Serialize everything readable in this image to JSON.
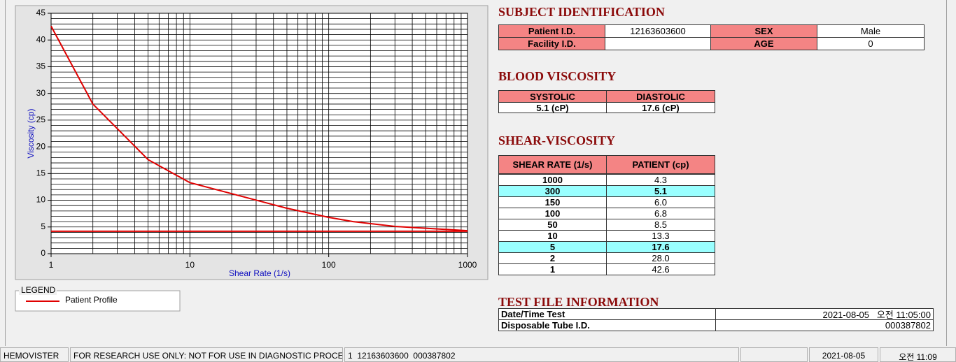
{
  "chart_data": {
    "type": "line",
    "xlabel": "Shear Rate (1/s)",
    "ylabel": "Viscosity (cp)",
    "xscale": "log",
    "xlim": [
      1,
      1000
    ],
    "ylim": [
      0,
      45
    ],
    "xticks": [
      1,
      10,
      100,
      1000
    ],
    "yticks": [
      0,
      5,
      10,
      15,
      20,
      25,
      30,
      35,
      40,
      45
    ],
    "xminorticks": [
      2,
      3,
      4,
      5,
      6,
      7,
      8,
      9,
      20,
      30,
      40,
      50,
      60,
      70,
      80,
      90,
      200,
      300,
      400,
      500,
      600,
      700,
      800,
      900
    ],
    "yminorticks": [
      1,
      2,
      3,
      4,
      6,
      7,
      8,
      9,
      11,
      12,
      13,
      14,
      16,
      17,
      18,
      19,
      21,
      22,
      23,
      24,
      26,
      27,
      28,
      29,
      31,
      32,
      33,
      34,
      36,
      37,
      38,
      39,
      41,
      42,
      43,
      44
    ],
    "grid": true,
    "legend_title": "LEGEND",
    "series": [
      {
        "name": "Patient Profile",
        "color": "#e00000",
        "x": [
          1,
          2,
          5,
          10,
          50,
          100,
          150,
          300,
          1000
        ],
        "values": [
          42.6,
          28.0,
          17.6,
          13.3,
          8.5,
          6.8,
          6.0,
          5.1,
          4.3
        ]
      },
      {
        "color": "#e00000",
        "x": [
          1,
          1000
        ],
        "values": [
          4.2,
          4.2
        ]
      }
    ]
  },
  "subject_identification": {
    "title": "SUBJECT IDENTIFICATION",
    "patient_id_label": "Patient I.D.",
    "patient_id": "12163603600",
    "sex_label": "SEX",
    "sex": "Male",
    "facility_id_label": "Facility I.D.",
    "age_label": "AGE",
    "age": "0"
  },
  "blood_viscosity": {
    "title": "BLOOD VISCOSITY",
    "headers": [
      "SYSTOLIC",
      "DIASTOLIC"
    ],
    "values": [
      "5.1 (cP)",
      "17.6 (cP)"
    ]
  },
  "shear_viscosity": {
    "title": "SHEAR-VISCOSITY",
    "headers": [
      "SHEAR RATE (1/s)",
      "PATIENT (cp)"
    ],
    "rows": [
      [
        "1000",
        "4.3"
      ],
      [
        "300",
        "5.1"
      ],
      [
        "150",
        "6.0"
      ],
      [
        "100",
        "6.8"
      ],
      [
        "50",
        "8.5"
      ],
      [
        "10",
        "13.3"
      ],
      [
        "5",
        "17.6"
      ],
      [
        "2",
        "28.0"
      ],
      [
        "1",
        "42.6"
      ]
    ],
    "highlighted_rows": [
      1,
      6
    ]
  },
  "test_file": {
    "title": "TEST FILE INFORMATION",
    "rows": [
      [
        "Date/Time Test",
        "2021-08-05   오전 11:05:00"
      ],
      [
        "Disposable Tube I.D.",
        "000387802"
      ]
    ]
  },
  "status_bar": [
    "HEMOVISTER",
    "FOR RESEARCH USE ONLY: NOT FOR USE IN DIAGNOSTIC PROCEDURES",
    "1  12163603600  000387802",
    "2021-08-05",
    "오전 11:09"
  ]
}
